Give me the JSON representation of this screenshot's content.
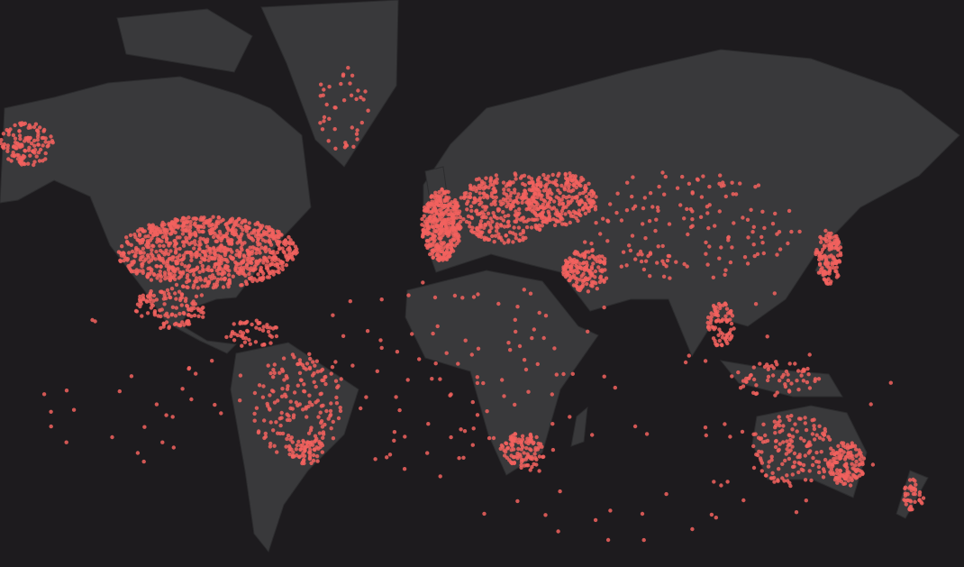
{
  "map": {
    "style": "dark",
    "projection": "mercator",
    "colors": {
      "ocean": "#1d1b1e",
      "land": "#39393b",
      "border": "#2c2c2e",
      "marker": "#f2625e"
    },
    "marker_icon": "dot-marker"
  }
}
